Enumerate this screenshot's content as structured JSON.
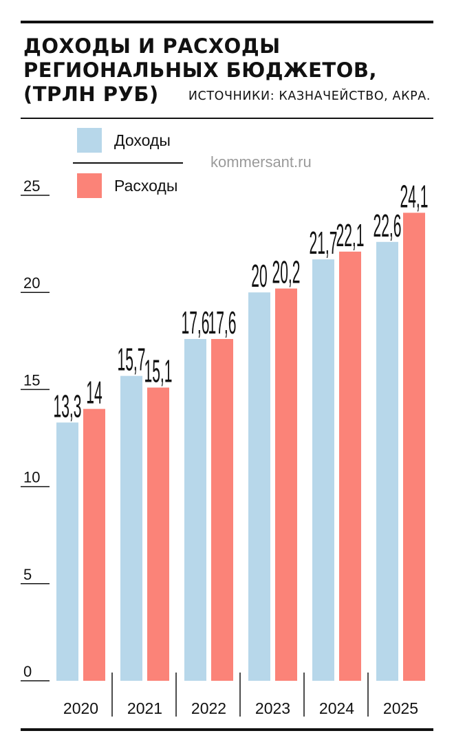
{
  "title_lines": [
    "ДОХОДЫ И РАСХОДЫ",
    "РЕГИОНАЛЬНЫХ БЮДЖЕТОВ,",
    "(ТРЛН РУБ)"
  ],
  "source": "ИСТОЧНИКИ: КАЗНАЧЕЙСТВО, АКРА.",
  "watermark": "kommersant.ru",
  "legend": [
    {
      "label": "Доходы",
      "color": "#b7d7ea"
    },
    {
      "label": "Расходы",
      "color": "#fb8378"
    }
  ],
  "chart_data": {
    "type": "bar",
    "title": "ДОХОДЫ И РАСХОДЫ РЕГИОНАЛЬНЫХ БЮДЖЕТОВ, (ТРЛН РУБ)",
    "categories": [
      "2020",
      "2021",
      "2022",
      "2023",
      "2024",
      "2025"
    ],
    "series": [
      {
        "name": "Доходы",
        "values": [
          13.3,
          15.7,
          17.6,
          20,
          21.7,
          22.6
        ],
        "labels": [
          "13,3",
          "15,7",
          "17,6",
          "20",
          "21,7",
          "22,6"
        ],
        "color": "#b7d7ea"
      },
      {
        "name": "Расходы",
        "values": [
          14,
          15.1,
          17.6,
          20.2,
          22.1,
          24.1
        ],
        "labels": [
          "14",
          "15,1",
          "17,6",
          "20,2",
          "22,1",
          "24,1"
        ],
        "color": "#fb8378"
      }
    ],
    "yticks": [
      0,
      5,
      10,
      15,
      20,
      25
    ],
    "ylim": [
      0,
      25
    ],
    "grid": false,
    "legend_position": "top-left"
  }
}
